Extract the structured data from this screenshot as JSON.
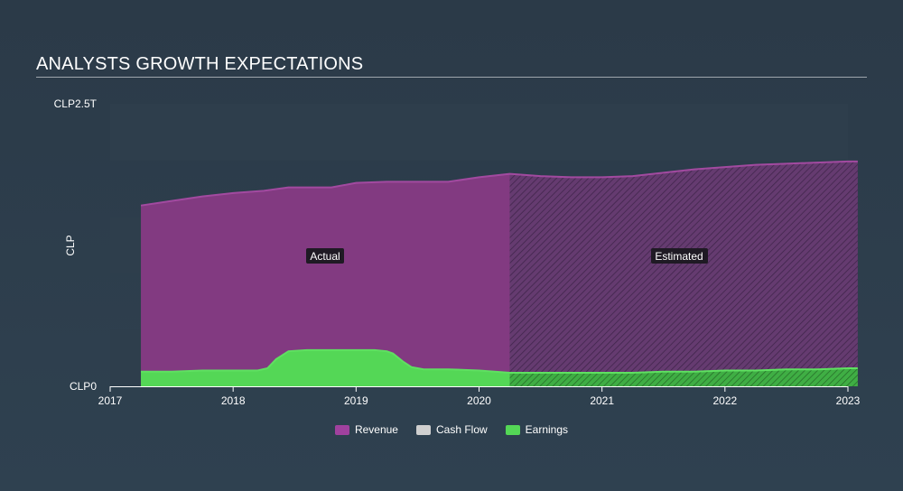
{
  "header": {
    "title": "ANALYSTS GROWTH EXPECTATIONS"
  },
  "colors": {
    "revenue": "#8a3a86",
    "revenue_est": "#6b3b74",
    "cashflow": "#cfcfcf",
    "earnings": "#54d756",
    "band": "#2e3e4c"
  },
  "chart_data": {
    "type": "area",
    "ylabel": "CLP",
    "y_tick_labels": [
      "CLP2.5T",
      "CLP0"
    ],
    "ylim": [
      0,
      2.5
    ],
    "y_unit": "T CLP",
    "xlim": [
      2017.0,
      2023.0
    ],
    "x_ticks": [
      "2017",
      "2018",
      "2019",
      "2020",
      "2021",
      "2022",
      "2023"
    ],
    "forecast_start": 2020.25,
    "annotations": {
      "actual": "Actual",
      "estimated": "Estimated"
    },
    "legend": [
      "Revenue",
      "Cash Flow",
      "Earnings"
    ],
    "series": [
      {
        "name": "Revenue",
        "x": [
          2017.25,
          2017.5,
          2017.75,
          2018.0,
          2018.25,
          2018.45,
          2018.6,
          2018.8,
          2019.0,
          2019.25,
          2019.5,
          2019.75,
          2020.0,
          2020.25,
          2020.5,
          2020.75,
          2021.0,
          2021.25,
          2021.5,
          2021.75,
          2022.0,
          2022.25,
          2022.5,
          2022.75,
          2023.0,
          2023.08
        ],
        "values": [
          1.6,
          1.64,
          1.68,
          1.71,
          1.73,
          1.76,
          1.76,
          1.76,
          1.8,
          1.81,
          1.81,
          1.81,
          1.85,
          1.88,
          1.86,
          1.85,
          1.85,
          1.86,
          1.89,
          1.92,
          1.94,
          1.96,
          1.97,
          1.98,
          1.99,
          1.99
        ]
      },
      {
        "name": "Earnings",
        "x": [
          2017.25,
          2017.5,
          2017.75,
          2018.0,
          2018.2,
          2018.28,
          2018.35,
          2018.45,
          2018.6,
          2018.8,
          2019.0,
          2019.15,
          2019.25,
          2019.3,
          2019.38,
          2019.45,
          2019.55,
          2019.75,
          2020.0,
          2020.25,
          2020.5,
          2020.75,
          2021.0,
          2021.25,
          2021.5,
          2021.75,
          2022.0,
          2022.25,
          2022.5,
          2022.75,
          2023.0,
          2023.08
        ],
        "values": [
          0.13,
          0.13,
          0.14,
          0.14,
          0.14,
          0.16,
          0.24,
          0.31,
          0.32,
          0.32,
          0.32,
          0.32,
          0.31,
          0.29,
          0.22,
          0.17,
          0.15,
          0.15,
          0.14,
          0.12,
          0.12,
          0.12,
          0.12,
          0.12,
          0.13,
          0.13,
          0.14,
          0.14,
          0.15,
          0.15,
          0.16,
          0.16
        ]
      }
    ]
  }
}
